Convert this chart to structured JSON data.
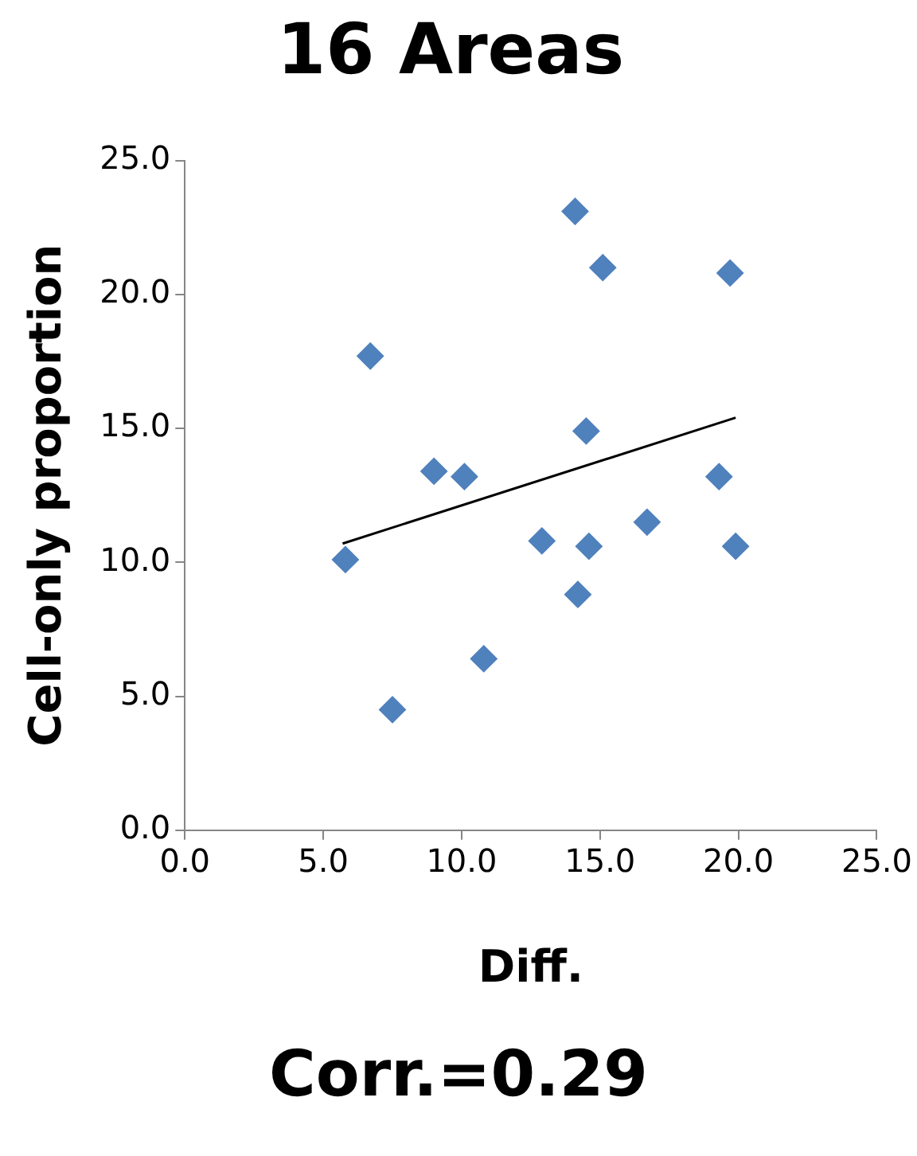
{
  "chart_data": {
    "type": "scatter",
    "title": "16 Areas",
    "xlabel": "Diff.",
    "ylabel": "Cell-only proportion",
    "xlim": [
      0,
      25
    ],
    "xticks": [
      {
        "value": 0,
        "label": "0.0"
      },
      {
        "value": 5,
        "label": "5.0"
      },
      {
        "value": 10,
        "label": "10.0"
      },
      {
        "value": 15,
        "label": "15.0"
      },
      {
        "value": 20,
        "label": "20.0"
      },
      {
        "value": 25,
        "label": "25.0"
      }
    ],
    "ylim": [
      0,
      25
    ],
    "yticks": [
      {
        "value": 0,
        "label": "0.0"
      },
      {
        "value": 5,
        "label": "5.0"
      },
      {
        "value": 10,
        "label": "10.0"
      },
      {
        "value": 15,
        "label": "15.0"
      },
      {
        "value": 20,
        "label": "20.0"
      },
      {
        "value": 25,
        "label": "25.0"
      }
    ],
    "grid": false,
    "legend": false,
    "marker": "diamond",
    "series": [
      {
        "type": "scatter",
        "color": "#4f81bd",
        "x": [
          5.8,
          6.7,
          7.5,
          9.0,
          10.1,
          10.8,
          12.9,
          14.1,
          14.2,
          14.5,
          14.6,
          15.1,
          16.7,
          19.3,
          19.7,
          19.9
        ],
        "values": [
          10.1,
          17.7,
          4.5,
          13.4,
          13.2,
          6.4,
          10.8,
          23.1,
          8.8,
          14.9,
          10.6,
          21.0,
          11.5,
          13.2,
          20.8,
          10.6
        ]
      },
      {
        "type": "line",
        "color": "#000000",
        "marker": "none",
        "x": [
          5.7,
          19.9
        ],
        "values": [
          10.7,
          15.4
        ]
      }
    ],
    "annotations": [
      "Corr.=0.29"
    ]
  }
}
